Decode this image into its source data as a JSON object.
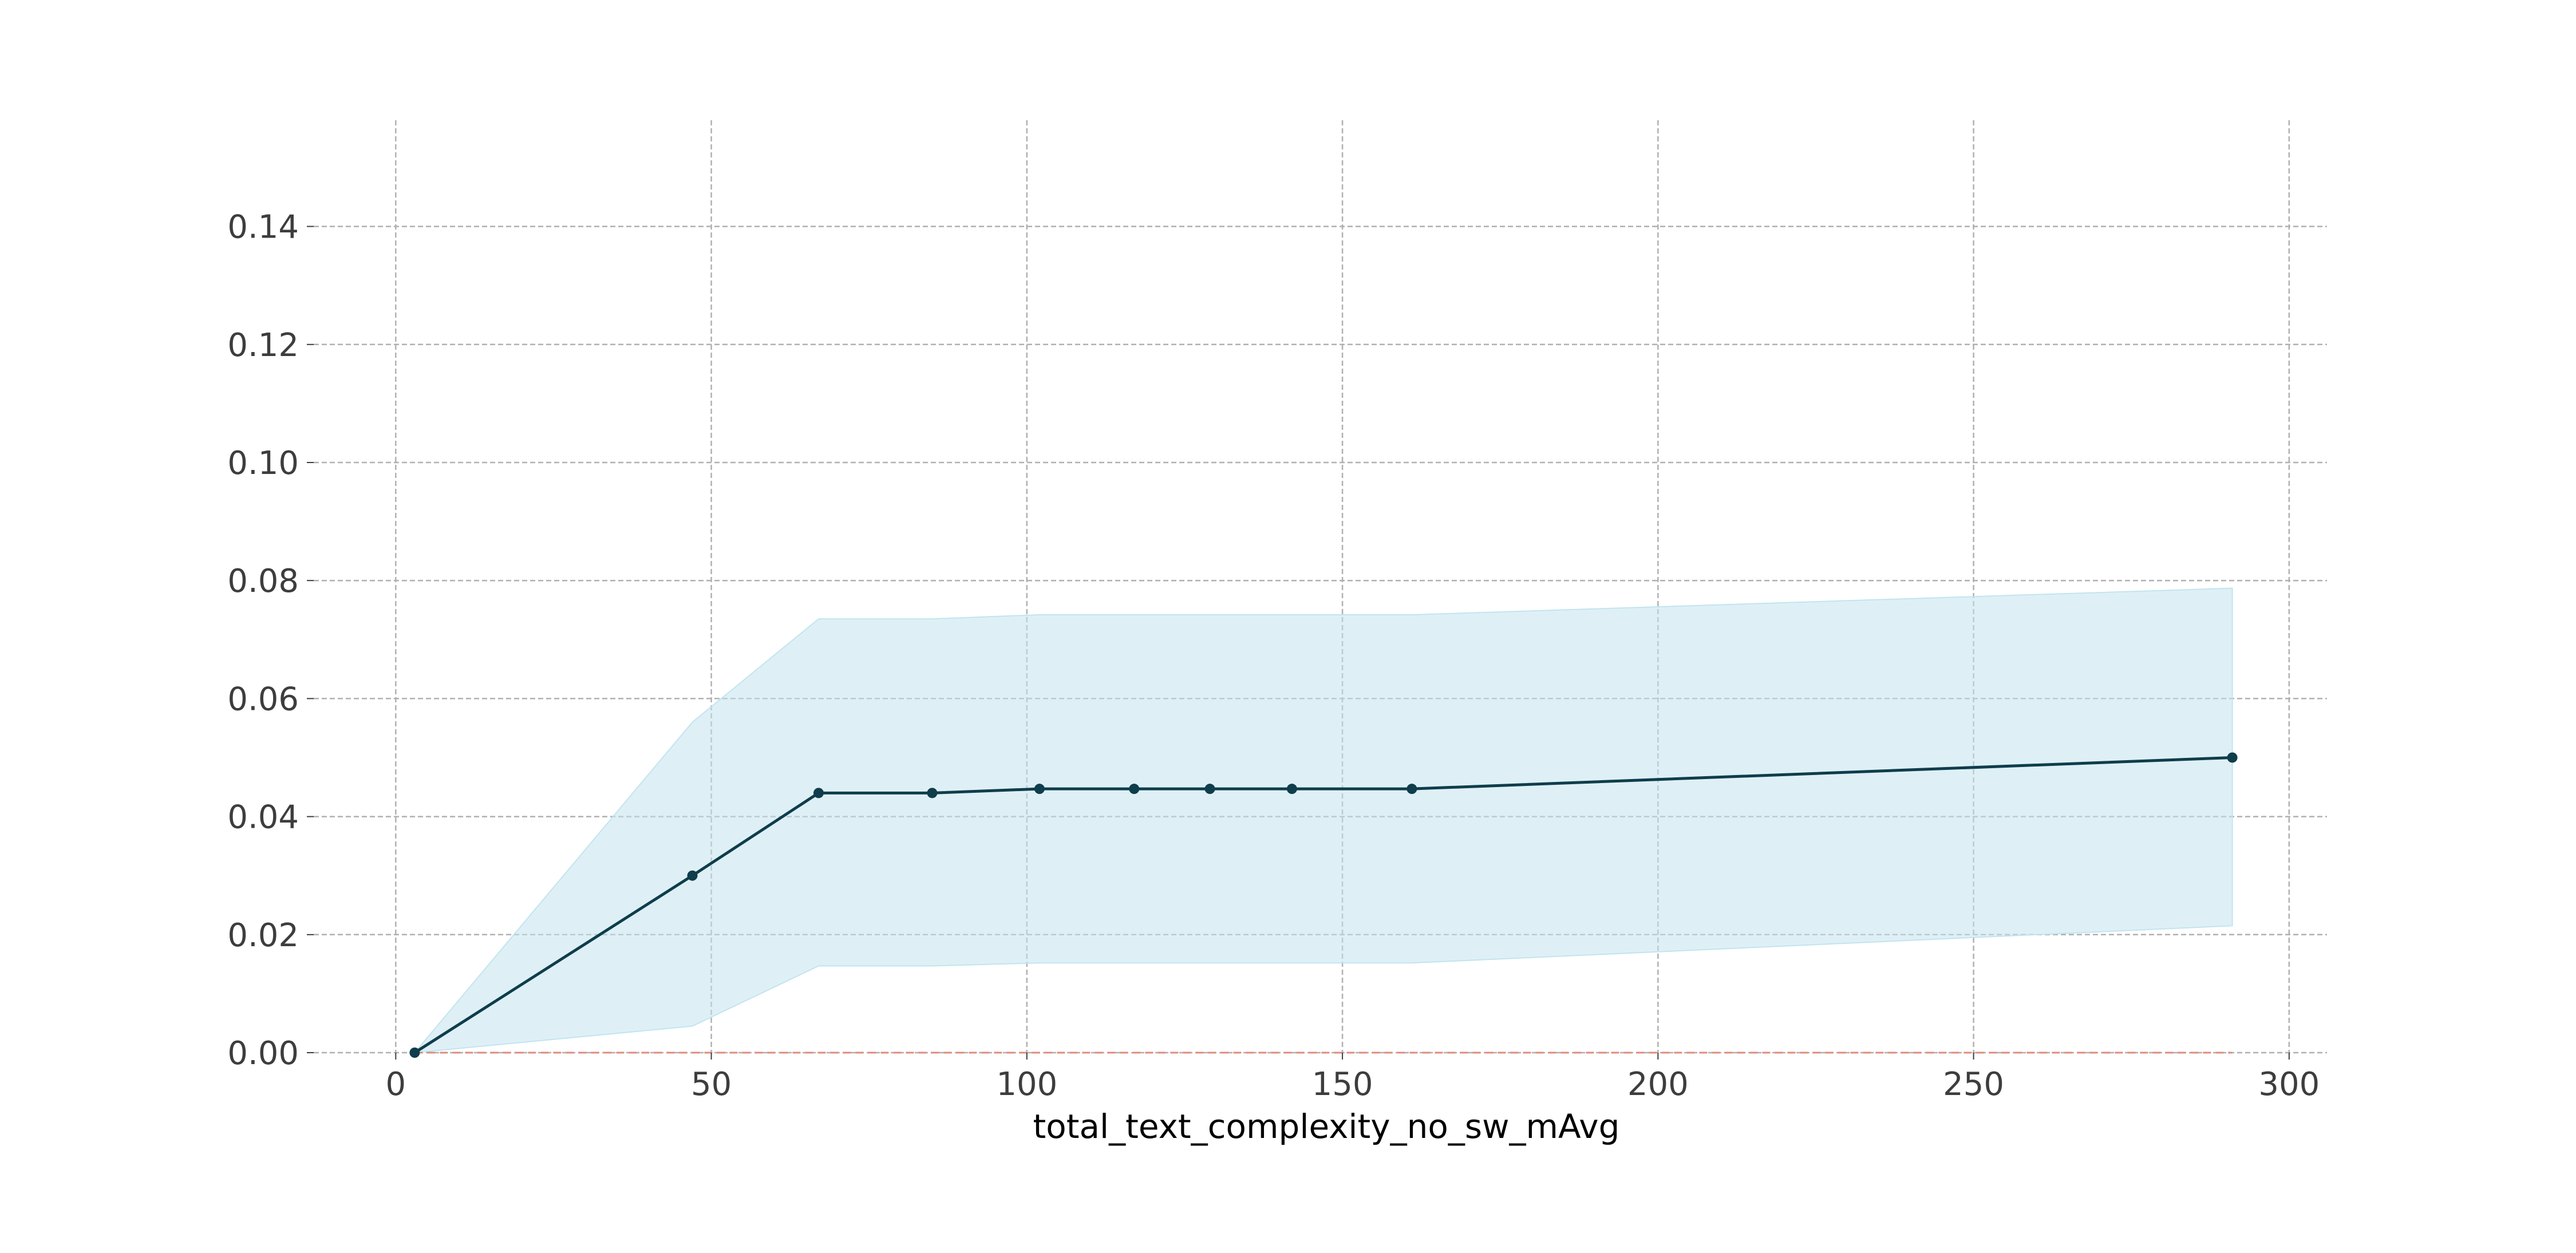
{
  "chart_data": {
    "type": "line",
    "title": "",
    "xlabel": "total_text_complexity_no_sw_mAvg",
    "ylabel": "",
    "xlim": [
      -13,
      306
    ],
    "ylim": [
      0,
      0.158
    ],
    "xticks": [
      0,
      50,
      100,
      150,
      200,
      250,
      300
    ],
    "xtick_labels": [
      "0",
      "50",
      "100",
      "150",
      "200",
      "250",
      "300"
    ],
    "yticks": [
      0.0,
      0.02,
      0.04,
      0.06,
      0.08,
      0.1,
      0.12,
      0.14
    ],
    "ytick_labels": [
      "0.00",
      "0.02",
      "0.04",
      "0.06",
      "0.08",
      "0.10",
      "0.12",
      "0.14"
    ],
    "grid": true,
    "legend": null,
    "series": [
      {
        "x": [
          3,
          47,
          67,
          85,
          102,
          117,
          129,
          142,
          161,
          291
        ],
        "values": [
          0.0,
          0.03,
          0.044,
          0.044,
          0.0447,
          0.0447,
          0.0447,
          0.0447,
          0.0447,
          0.05
        ],
        "lower": [
          0.0,
          0.0045,
          0.0147,
          0.0147,
          0.0152,
          0.0152,
          0.0152,
          0.0152,
          0.0152,
          0.0215
        ],
        "upper": [
          0.0,
          0.056,
          0.0735,
          0.0735,
          0.0742,
          0.0742,
          0.0742,
          0.0742,
          0.0742,
          0.0787
        ],
        "color": "#0f3d4c",
        "band_color": "#c2e4ef",
        "marker": "circle"
      }
    ],
    "reference_line": {
      "y": 0,
      "x_range": [
        3,
        291
      ],
      "color": "#e08b7b",
      "style": "dashed"
    }
  }
}
